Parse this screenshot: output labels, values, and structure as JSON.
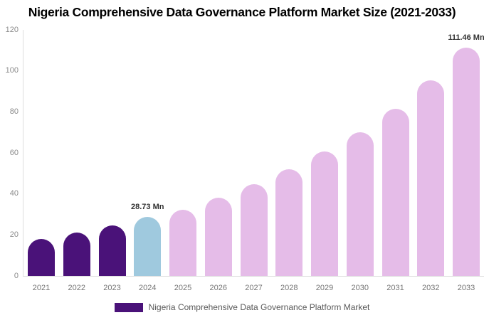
{
  "title": "Nigeria Comprehensive Data Governance Platform Market Size (2021-2033)",
  "chart_data": {
    "type": "bar",
    "title": "Nigeria Comprehensive Data Governance Platform Market Size (2021-2033)",
    "categories": [
      "2021",
      "2022",
      "2023",
      "2024",
      "2025",
      "2026",
      "2027",
      "2028",
      "2029",
      "2030",
      "2031",
      "2032",
      "2033"
    ],
    "values": [
      18.0,
      21.1,
      24.5,
      28.73,
      32.2,
      38.1,
      44.7,
      51.9,
      60.6,
      70.0,
      81.5,
      95.3,
      111.46
    ],
    "unit": "Mn",
    "ylim": [
      0,
      120
    ],
    "yticks": [
      0,
      20,
      40,
      60,
      80,
      100,
      120
    ],
    "grid": false,
    "legend_position": "bottom",
    "series_colors": {
      "historical_2021_2023": "#4A1279",
      "base_year_2024": "#9FC9DE",
      "forecast_2025_2033": "#E5BCE8"
    },
    "bar_colors": [
      "#4A1279",
      "#4A1279",
      "#4A1279",
      "#9FC9DE",
      "#E5BCE8",
      "#E5BCE8",
      "#E5BCE8",
      "#E5BCE8",
      "#E5BCE8",
      "#E5BCE8",
      "#E5BCE8",
      "#E5BCE8",
      "#E5BCE8"
    ],
    "data_labels": [
      {
        "category": "2024",
        "text": "28.73 Mn"
      },
      {
        "category": "2033",
        "text": "111.46 Mn"
      }
    ]
  },
  "legend": {
    "label": "Nigeria Comprehensive Data Governance Platform Market",
    "swatch_color": "#4A1279"
  },
  "colors": {
    "background": "#FFFFFF",
    "title_text": "#000000",
    "axis_line": "#DDDDDD",
    "ytick_text": "#8A8A8A",
    "xtick_text": "#757575",
    "data_label_text": "#333333",
    "legend_text": "#595959"
  }
}
